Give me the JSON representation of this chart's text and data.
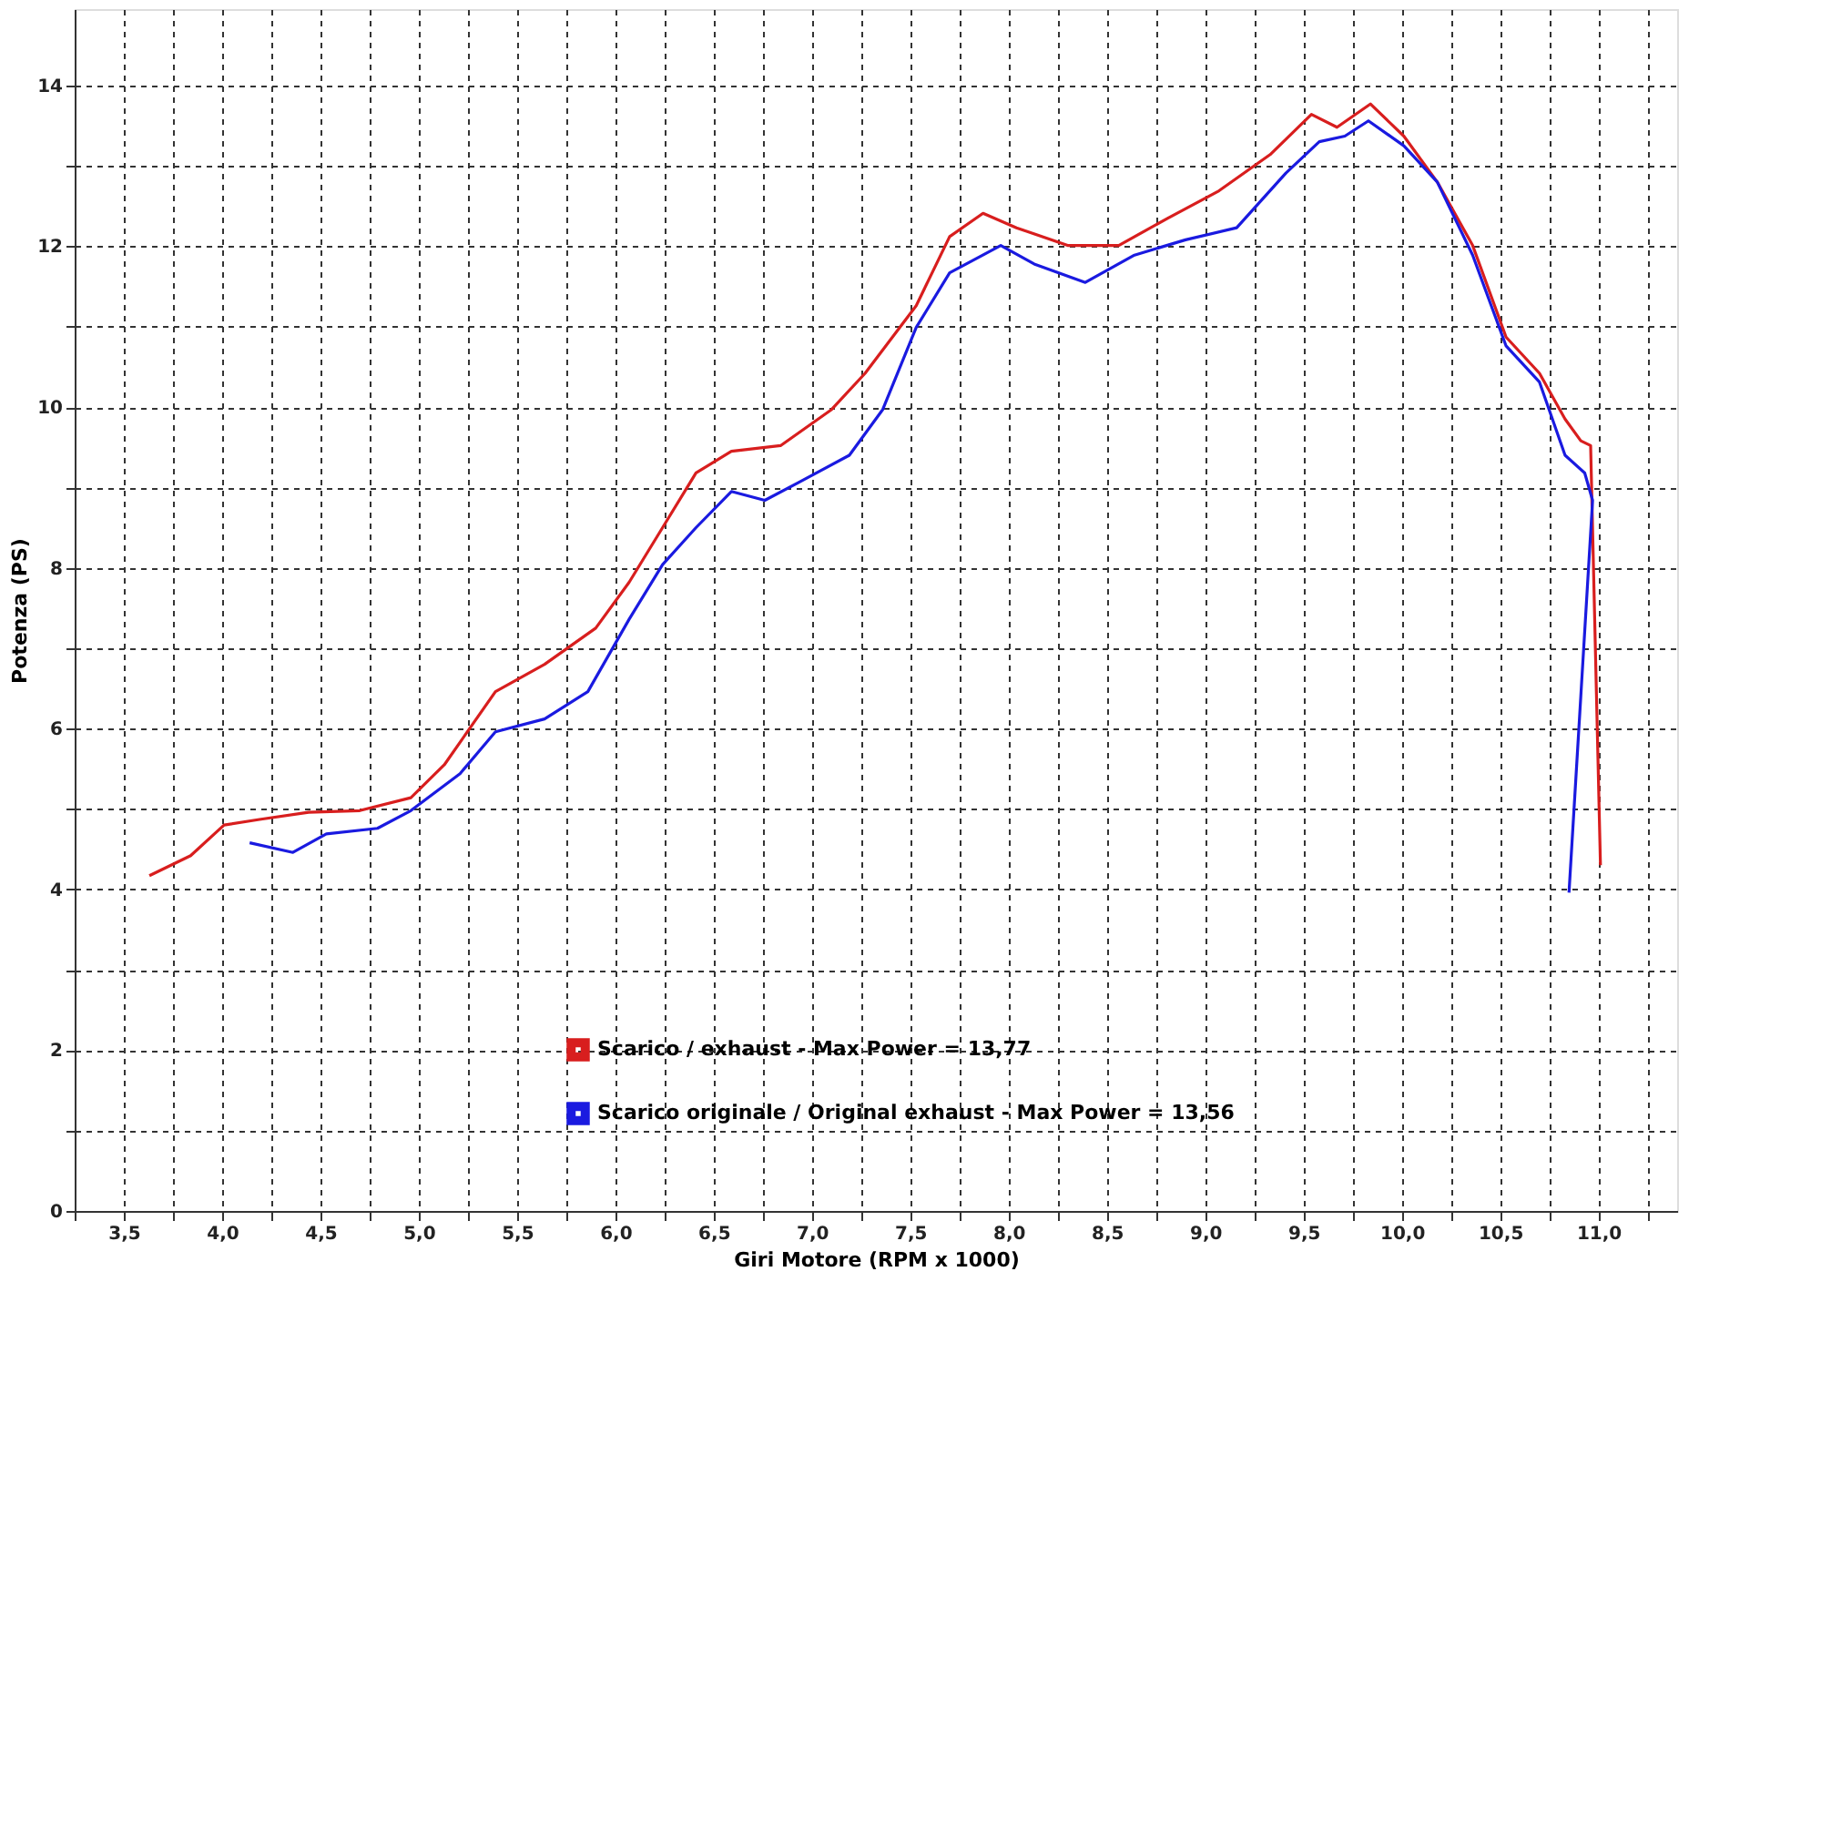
{
  "chart_data": {
    "type": "line",
    "xlabel": "Giri Motore (RPM x 1000)",
    "ylabel": "Potenza (PS)",
    "xlim": [
      3.25,
      11.4
    ],
    "ylim": [
      0,
      14.95
    ],
    "xticks": [
      {
        "value": 3.25,
        "label": null
      },
      {
        "value": 3.5,
        "label": "3,5"
      },
      {
        "value": 3.75,
        "label": null
      },
      {
        "value": 4.0,
        "label": "4,0"
      },
      {
        "value": 4.25,
        "label": null
      },
      {
        "value": 4.5,
        "label": "4,5"
      },
      {
        "value": 4.75,
        "label": null
      },
      {
        "value": 5.0,
        "label": "5,0"
      },
      {
        "value": 5.25,
        "label": null
      },
      {
        "value": 5.5,
        "label": "5,5"
      },
      {
        "value": 5.75,
        "label": null
      },
      {
        "value": 6.0,
        "label": "6,0"
      },
      {
        "value": 6.25,
        "label": null
      },
      {
        "value": 6.5,
        "label": "6,5"
      },
      {
        "value": 6.75,
        "label": null
      },
      {
        "value": 7.0,
        "label": "7,0"
      },
      {
        "value": 7.25,
        "label": null
      },
      {
        "value": 7.5,
        "label": "7,5"
      },
      {
        "value": 7.75,
        "label": null
      },
      {
        "value": 8.0,
        "label": "8,0"
      },
      {
        "value": 8.25,
        "label": null
      },
      {
        "value": 8.5,
        "label": "8,5"
      },
      {
        "value": 8.75,
        "label": null
      },
      {
        "value": 9.0,
        "label": "9,0"
      },
      {
        "value": 9.25,
        "label": null
      },
      {
        "value": 9.5,
        "label": "9,5"
      },
      {
        "value": 9.75,
        "label": null
      },
      {
        "value": 10.0,
        "label": "10,0"
      },
      {
        "value": 10.25,
        "label": null
      },
      {
        "value": 10.5,
        "label": "10,5"
      },
      {
        "value": 10.75,
        "label": null
      },
      {
        "value": 11.0,
        "label": "11,0"
      },
      {
        "value": 11.25,
        "label": null
      }
    ],
    "yticks": [
      0,
      {
        "value": 1,
        "label": null
      },
      2,
      {
        "value": 3,
        "label": null
      },
      4,
      {
        "value": 5,
        "label": null
      },
      6,
      {
        "value": 7,
        "label": null
      },
      8,
      {
        "value": 9,
        "label": null
      },
      10,
      {
        "value": 11,
        "label": null
      },
      12,
      {
        "value": 13,
        "label": null
      },
      14
    ],
    "grid": true,
    "legend": "bottom",
    "line_style": "solid",
    "marker": "none",
    "series": [
      {
        "name": "Scarico / exhaust - Max Power = 13,77",
        "color": "#d81e1e",
        "x": [
          3.63,
          3.84,
          4.01,
          4.19,
          4.44,
          4.7,
          4.96,
          5.13,
          5.39,
          5.64,
          5.9,
          6.07,
          6.24,
          6.41,
          6.59,
          6.84,
          7.1,
          7.27,
          7.53,
          7.7,
          7.87,
          8.04,
          8.3,
          8.56,
          8.81,
          9.07,
          9.33,
          9.54,
          9.67,
          9.84,
          10.01,
          10.18,
          10.36,
          10.53,
          10.7,
          10.83,
          10.91,
          10.96,
          11.01
        ],
        "values": [
          4.17,
          4.42,
          4.8,
          4.87,
          4.96,
          4.98,
          5.14,
          5.55,
          6.46,
          6.8,
          7.25,
          7.82,
          8.5,
          9.18,
          9.45,
          9.52,
          9.97,
          10.42,
          11.26,
          12.12,
          12.41,
          12.23,
          12.01,
          12.01,
          12.35,
          12.69,
          13.14,
          13.64,
          13.48,
          13.77,
          13.37,
          12.8,
          12.01,
          10.87,
          10.42,
          9.85,
          9.58,
          9.52,
          4.3
        ]
      },
      {
        "name": "Scarico originale / Original exhaust - Max Power = 13,56",
        "color": "#1a1ae0",
        "x": [
          4.14,
          4.36,
          4.53,
          4.79,
          4.96,
          5.21,
          5.39,
          5.64,
          5.86,
          6.07,
          6.24,
          6.41,
          6.59,
          6.76,
          6.93,
          7.19,
          7.36,
          7.53,
          7.7,
          7.96,
          8.13,
          8.39,
          8.64,
          8.9,
          9.16,
          9.41,
          9.58,
          9.71,
          9.83,
          10.01,
          10.18,
          10.36,
          10.53,
          10.7,
          10.83,
          10.93,
          10.97,
          10.85
        ],
        "values": [
          4.58,
          4.46,
          4.69,
          4.76,
          4.98,
          5.44,
          5.96,
          6.12,
          6.46,
          7.36,
          8.04,
          8.5,
          8.95,
          8.84,
          9.06,
          9.4,
          9.97,
          10.99,
          11.67,
          12.01,
          11.78,
          11.55,
          11.89,
          12.08,
          12.23,
          12.91,
          13.3,
          13.37,
          13.56,
          13.25,
          12.8,
          11.89,
          10.76,
          10.31,
          9.4,
          9.18,
          8.84,
          3.96
        ]
      }
    ]
  }
}
